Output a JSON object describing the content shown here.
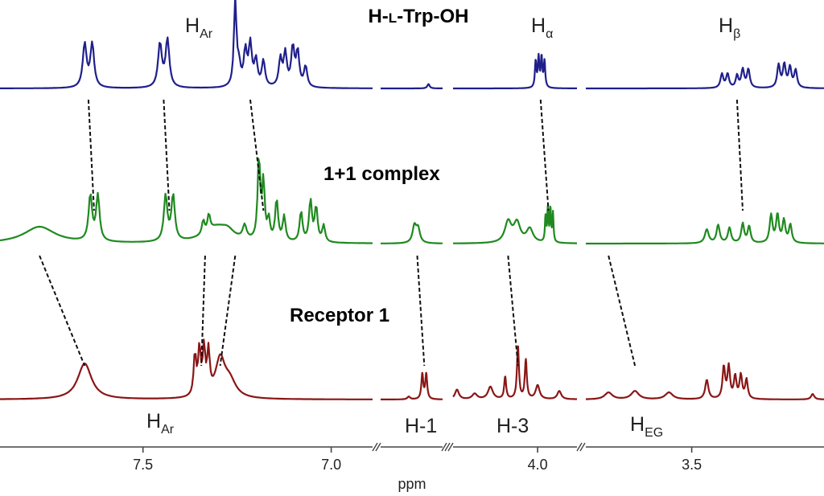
{
  "chart_data": {
    "type": "line",
    "title": "",
    "xlabel": "ppm",
    "ylabel": "",
    "x_axis": {
      "direction": "decreasing",
      "segments": [
        {
          "range": [
            7.88,
            6.89
          ],
          "tick_values": [
            7.5,
            7.0
          ],
          "tick_labels": [
            "7.5",
            "7.0"
          ]
        },
        {
          "range": [
            6.79,
            6.57
          ],
          "tick_values": [],
          "tick_labels": []
        },
        {
          "range": [
            4.43,
            3.8
          ],
          "tick_values": [
            4.0
          ],
          "tick_labels": [
            "4.0"
          ]
        },
        {
          "range": [
            3.78,
            3.15
          ],
          "tick_values": [
            3.5
          ],
          "tick_labels": [
            "3.5"
          ]
        }
      ],
      "breaks": [
        "//",
        "///",
        "//"
      ]
    },
    "series": [
      {
        "name": "H-L-Trp-OH",
        "label_parts": [
          "H-",
          "L",
          "-Trp-OH"
        ],
        "color": "#1f1f8c",
        "peaks": [
          {
            "ppm": 7.655,
            "height": 0.5,
            "width": 0.006
          },
          {
            "ppm": 7.635,
            "height": 0.5,
            "width": 0.006
          },
          {
            "ppm": 7.455,
            "height": 0.5,
            "width": 0.006
          },
          {
            "ppm": 7.435,
            "height": 0.55,
            "width": 0.006
          },
          {
            "ppm": 7.255,
            "height": 1.0,
            "width": 0.004
          },
          {
            "ppm": 7.245,
            "height": 0.22,
            "width": 0.005
          },
          {
            "ppm": 7.228,
            "height": 0.4,
            "width": 0.005
          },
          {
            "ppm": 7.215,
            "height": 0.48,
            "width": 0.005
          },
          {
            "ppm": 7.2,
            "height": 0.3,
            "width": 0.005
          },
          {
            "ppm": 7.18,
            "height": 0.3,
            "width": 0.005
          },
          {
            "ppm": 7.135,
            "height": 0.32,
            "width": 0.005
          },
          {
            "ppm": 7.122,
            "height": 0.38,
            "width": 0.005
          },
          {
            "ppm": 7.102,
            "height": 0.45,
            "width": 0.005
          },
          {
            "ppm": 7.089,
            "height": 0.4,
            "width": 0.005
          },
          {
            "ppm": 7.068,
            "height": 0.24,
            "width": 0.005
          },
          {
            "ppm": 6.62,
            "height": 0.05,
            "width": 0.005
          },
          {
            "ppm": 4.01,
            "height": 0.3,
            "width": 0.0045
          },
          {
            "ppm": 3.995,
            "height": 0.34,
            "width": 0.0045
          },
          {
            "ppm": 3.98,
            "height": 0.34,
            "width": 0.0045
          },
          {
            "ppm": 3.965,
            "height": 0.3,
            "width": 0.0045
          },
          {
            "ppm": 3.42,
            "height": 0.16,
            "width": 0.0045
          },
          {
            "ppm": 3.405,
            "height": 0.16,
            "width": 0.0045
          },
          {
            "ppm": 3.38,
            "height": 0.14,
            "width": 0.004
          },
          {
            "ppm": 3.365,
            "height": 0.21,
            "width": 0.0045
          },
          {
            "ppm": 3.35,
            "height": 0.21,
            "width": 0.0045
          },
          {
            "ppm": 3.27,
            "height": 0.26,
            "width": 0.0045
          },
          {
            "ppm": 3.255,
            "height": 0.26,
            "width": 0.0045
          },
          {
            "ppm": 3.24,
            "height": 0.23,
            "width": 0.0045
          },
          {
            "ppm": 3.225,
            "height": 0.2,
            "width": 0.0045
          }
        ]
      },
      {
        "name": "1+1 complex",
        "color": "#1f8a1f",
        "peaks": [
          {
            "ppm": 7.775,
            "height": 0.12,
            "width": 0.05
          },
          {
            "ppm": 7.64,
            "height": 0.33,
            "width": 0.0055
          },
          {
            "ppm": 7.62,
            "height": 0.33,
            "width": 0.0055
          },
          {
            "ppm": 7.44,
            "height": 0.33,
            "width": 0.0055
          },
          {
            "ppm": 7.42,
            "height": 0.33,
            "width": 0.0055
          },
          {
            "ppm": 7.34,
            "height": 0.1,
            "width": 0.004
          },
          {
            "ppm": 7.325,
            "height": 0.12,
            "width": 0.004
          },
          {
            "ppm": 7.305,
            "height": 0.11,
            "width": 0.04
          },
          {
            "ppm": 7.275,
            "height": 0.05,
            "width": 0.02
          },
          {
            "ppm": 7.23,
            "height": 0.1,
            "width": 0.006
          },
          {
            "ppm": 7.192,
            "height": 0.6,
            "width": 0.004
          },
          {
            "ppm": 7.18,
            "height": 0.42,
            "width": 0.004
          },
          {
            "ppm": 7.166,
            "height": 0.15,
            "width": 0.004
          },
          {
            "ppm": 7.145,
            "height": 0.3,
            "width": 0.0045
          },
          {
            "ppm": 7.125,
            "height": 0.18,
            "width": 0.0045
          },
          {
            "ppm": 7.08,
            "height": 0.22,
            "width": 0.0045
          },
          {
            "ppm": 7.055,
            "height": 0.3,
            "width": 0.0045
          },
          {
            "ppm": 7.04,
            "height": 0.25,
            "width": 0.0045
          },
          {
            "ppm": 7.02,
            "height": 0.12,
            "width": 0.0045
          },
          {
            "ppm": 6.67,
            "height": 0.12,
            "width": 0.008
          },
          {
            "ppm": 6.657,
            "height": 0.1,
            "width": 0.008
          },
          {
            "ppm": 4.15,
            "height": 0.15,
            "width": 0.02
          },
          {
            "ppm": 4.105,
            "height": 0.14,
            "width": 0.02
          },
          {
            "ppm": 4.04,
            "height": 0.1,
            "width": 0.02
          },
          {
            "ppm": 3.96,
            "height": 0.18,
            "width": 0.0035
          },
          {
            "ppm": 3.948,
            "height": 0.24,
            "width": 0.0035
          },
          {
            "ppm": 3.935,
            "height": 0.24,
            "width": 0.0035
          },
          {
            "ppm": 3.922,
            "height": 0.21,
            "width": 0.0035
          },
          {
            "ppm": 3.46,
            "height": 0.1,
            "width": 0.006
          },
          {
            "ppm": 3.43,
            "height": 0.13,
            "width": 0.005
          },
          {
            "ppm": 3.4,
            "height": 0.11,
            "width": 0.005
          },
          {
            "ppm": 3.365,
            "height": 0.14,
            "width": 0.0045
          },
          {
            "ppm": 3.348,
            "height": 0.12,
            "width": 0.0045
          },
          {
            "ppm": 3.29,
            "height": 0.2,
            "width": 0.0045
          },
          {
            "ppm": 3.273,
            "height": 0.2,
            "width": 0.0045
          },
          {
            "ppm": 3.256,
            "height": 0.16,
            "width": 0.0045
          },
          {
            "ppm": 3.239,
            "height": 0.13,
            "width": 0.0045
          }
        ]
      },
      {
        "name": "Receptor 1",
        "color": "#8a1616",
        "peaks": [
          {
            "ppm": 7.655,
            "height": 0.26,
            "width": 0.022
          },
          {
            "ppm": 7.362,
            "height": 0.3,
            "width": 0.004
          },
          {
            "ppm": 7.35,
            "height": 0.33,
            "width": 0.004
          },
          {
            "ppm": 7.338,
            "height": 0.33,
            "width": 0.004
          },
          {
            "ppm": 7.326,
            "height": 0.3,
            "width": 0.004
          },
          {
            "ppm": 7.295,
            "height": 0.27,
            "width": 0.015
          },
          {
            "ppm": 7.27,
            "height": 0.12,
            "width": 0.02
          },
          {
            "ppm": 6.69,
            "height": 0.02,
            "width": 0.006
          },
          {
            "ppm": 6.642,
            "height": 0.18,
            "width": 0.004
          },
          {
            "ppm": 6.628,
            "height": 0.18,
            "width": 0.004
          },
          {
            "ppm": 4.41,
            "height": 0.07,
            "width": 0.012
          },
          {
            "ppm": 4.32,
            "height": 0.04,
            "width": 0.015
          },
          {
            "ppm": 4.24,
            "height": 0.09,
            "width": 0.015
          },
          {
            "ppm": 4.165,
            "height": 0.16,
            "width": 0.006
          },
          {
            "ppm": 4.1,
            "height": 0.38,
            "width": 0.006
          },
          {
            "ppm": 4.06,
            "height": 0.28,
            "width": 0.006
          },
          {
            "ppm": 4.0,
            "height": 0.1,
            "width": 0.012
          },
          {
            "ppm": 3.89,
            "height": 0.06,
            "width": 0.012
          },
          {
            "ppm": 3.72,
            "height": 0.05,
            "width": 0.012
          },
          {
            "ppm": 3.65,
            "height": 0.06,
            "width": 0.012
          },
          {
            "ppm": 3.56,
            "height": 0.05,
            "width": 0.012
          },
          {
            "ppm": 3.46,
            "height": 0.14,
            "width": 0.005
          },
          {
            "ppm": 3.415,
            "height": 0.23,
            "width": 0.004
          },
          {
            "ppm": 3.402,
            "height": 0.23,
            "width": 0.004
          },
          {
            "ppm": 3.385,
            "height": 0.16,
            "width": 0.004
          },
          {
            "ppm": 3.37,
            "height": 0.17,
            "width": 0.004
          },
          {
            "ppm": 3.355,
            "height": 0.14,
            "width": 0.004
          },
          {
            "ppm": 3.18,
            "height": 0.04,
            "width": 0.005
          }
        ]
      }
    ],
    "annotations": [
      {
        "text": "H",
        "sub": "Ar",
        "near": "H-L-Trp-OH aromatic signals"
      },
      {
        "text": "H",
        "sub": "α",
        "near": "H-L-Trp-OH alpha proton"
      },
      {
        "text": "H",
        "sub": "β",
        "near": "H-L-Trp-OH beta protons"
      },
      {
        "text": "H",
        "sub": "Ar",
        "near": "Receptor 1 aromatic signals"
      },
      {
        "text": "H-1",
        "sub": "",
        "near": "Receptor 1 H-1"
      },
      {
        "text": "H-3",
        "sub": "",
        "near": "Receptor 1 H-3"
      },
      {
        "text": "H",
        "sub": "EG",
        "near": "Receptor 1 ethylene glycol"
      }
    ],
    "shift_lines": [
      {
        "from_series": 0,
        "to_series": 1,
        "from_ppm": 7.645,
        "to_ppm": 7.63
      },
      {
        "from_series": 0,
        "to_series": 1,
        "from_ppm": 7.445,
        "to_ppm": 7.43
      },
      {
        "from_series": 0,
        "to_series": 1,
        "from_ppm": 7.215,
        "to_ppm": 7.18
      },
      {
        "from_series": 0,
        "to_series": 1,
        "from_ppm": 3.985,
        "to_ppm": 3.945
      },
      {
        "from_series": 0,
        "to_series": 1,
        "from_ppm": 3.38,
        "to_ppm": 3.365
      },
      {
        "from_series": 1,
        "to_series": 2,
        "from_ppm": 7.775,
        "to_ppm": 7.655
      },
      {
        "from_series": 1,
        "to_series": 2,
        "from_ppm": 7.335,
        "to_ppm": 7.345
      },
      {
        "from_series": 1,
        "to_series": 2,
        "from_ppm": 7.255,
        "to_ppm": 7.295
      },
      {
        "from_series": 1,
        "to_series": 2,
        "from_ppm": 6.66,
        "to_ppm": 6.635
      },
      {
        "from_series": 1,
        "to_series": 2,
        "from_ppm": 4.15,
        "to_ppm": 4.1
      },
      {
        "from_series": 1,
        "to_series": 2,
        "from_ppm": 3.72,
        "to_ppm": 3.65
      }
    ],
    "grid": false,
    "legend": "none"
  }
}
